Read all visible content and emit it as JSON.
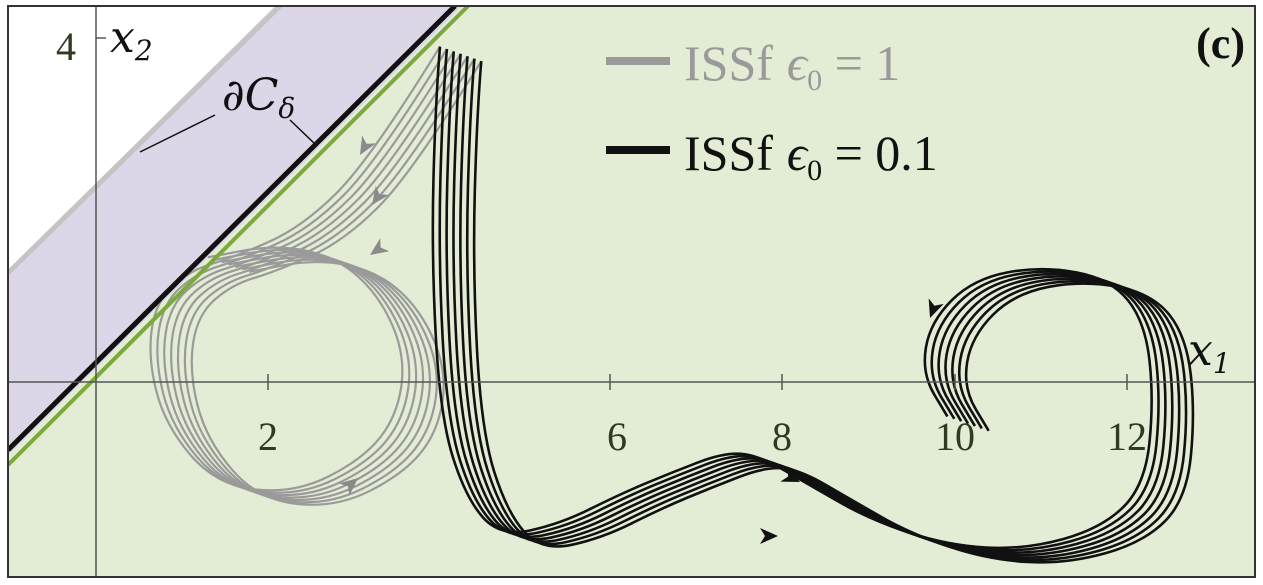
{
  "chart_data": {
    "type": "line",
    "panel_label": "(c)",
    "xlabel": "x",
    "xlabel_sub": "1",
    "ylabel": "x",
    "ylabel_sub": "2",
    "xlim": [
      -0.1,
      13.3
    ],
    "ylim": [
      -1.9,
      4.3
    ],
    "x_ticks": [
      2,
      6,
      8,
      10,
      12
    ],
    "y_ticks": [
      4
    ],
    "boundary_label": "∂C",
    "boundary_label_sub": "δ",
    "regions": [
      {
        "name": "safe-set",
        "color": "#e3ecd5"
      },
      {
        "name": "boundary-band",
        "color": "#dcd6e8"
      },
      {
        "name": "unsafe",
        "color": "#ffffff"
      }
    ],
    "lines": [
      {
        "role": "outer-boundary",
        "color": "#c4c4c4",
        "x": [
          -1,
          4.6
        ],
        "y": [
          1.2,
          5.8
        ]
      },
      {
        "role": "inner-boundary",
        "color": "#111111",
        "x": [
          -1,
          4.3
        ],
        "y": [
          -0.4,
          4.9
        ]
      },
      {
        "role": "safe-set-edge",
        "color": "#7aaa3a",
        "x": [
          -1,
          4.5
        ],
        "y": [
          -0.8,
          4.7
        ]
      }
    ],
    "series": [
      {
        "name": "ISSf",
        "param": "ϵ₀ = 1",
        "color": "#9a9a9a",
        "trajectories": [
          {
            "x": [
              4.0,
              3.2,
              2.4,
              1.6,
              1.1,
              0.7,
              0.6,
              0.8,
              1.4,
              2.3,
              3.1,
              3.5,
              3.6,
              3.3,
              2.8,
              2.1,
              1.3
            ],
            "y": [
              3.9,
              2.6,
              1.8,
              1.45,
              1.3,
              0.95,
              0.3,
              -0.5,
              -1.2,
              -1.3,
              -0.9,
              -0.4,
              0.3,
              1.0,
              1.45,
              1.6,
              1.45
            ]
          }
        ],
        "shifts": [
          0,
          0.08,
          0.16,
          0.24,
          0.32,
          0.4,
          0.48
        ]
      },
      {
        "name": "ISSf",
        "param": "ϵ₀ = 0.1",
        "color": "#111111",
        "trajectories": [
          {
            "x": [
              4.0,
              3.95,
              3.9,
              4.0,
              4.3,
              4.7,
              5.4,
              6.1,
              6.7,
              7.3,
              7.7,
              8.3,
              9.0,
              9.9,
              10.8,
              11.7,
              12.2,
              12.3,
              12.2,
              11.8,
              11.0,
              10.2,
              9.7,
              9.6,
              9.9
            ],
            "y": [
              3.9,
              3.3,
              1.5,
              -0.4,
              -1.35,
              -1.8,
              -1.65,
              -1.3,
              -1.05,
              -0.82,
              -0.85,
              -1.2,
              -1.6,
              -1.9,
              -1.95,
              -1.7,
              -1.2,
              -0.2,
              0.7,
              1.2,
              1.35,
              1.2,
              0.7,
              0.1,
              -0.4
            ]
          }
        ],
        "shifts": [
          0,
          0.08,
          0.16,
          0.24,
          0.32,
          0.4,
          0.48
        ]
      }
    ],
    "legend": {
      "placement": "top-center",
      "items": [
        {
          "label": "ISSf ϵ₀ = 1",
          "color": "#9a9a9a"
        },
        {
          "label": "ISSf ϵ₀ = 0.1",
          "color": "#111111"
        }
      ]
    }
  },
  "labels": {
    "tick_2": "2",
    "tick_6": "6",
    "tick_8": "8",
    "tick_10": "10",
    "tick_12": "12",
    "tick_4": "4",
    "legend_1_prefix": "ISSf",
    "legend_1_eps": "ϵ",
    "legend_1_sub": "0",
    "legend_1_val": " = 1",
    "legend_2_prefix": "ISSf",
    "legend_2_eps": "ϵ",
    "legend_2_sub": "0",
    "legend_2_val": " = 0.1"
  }
}
